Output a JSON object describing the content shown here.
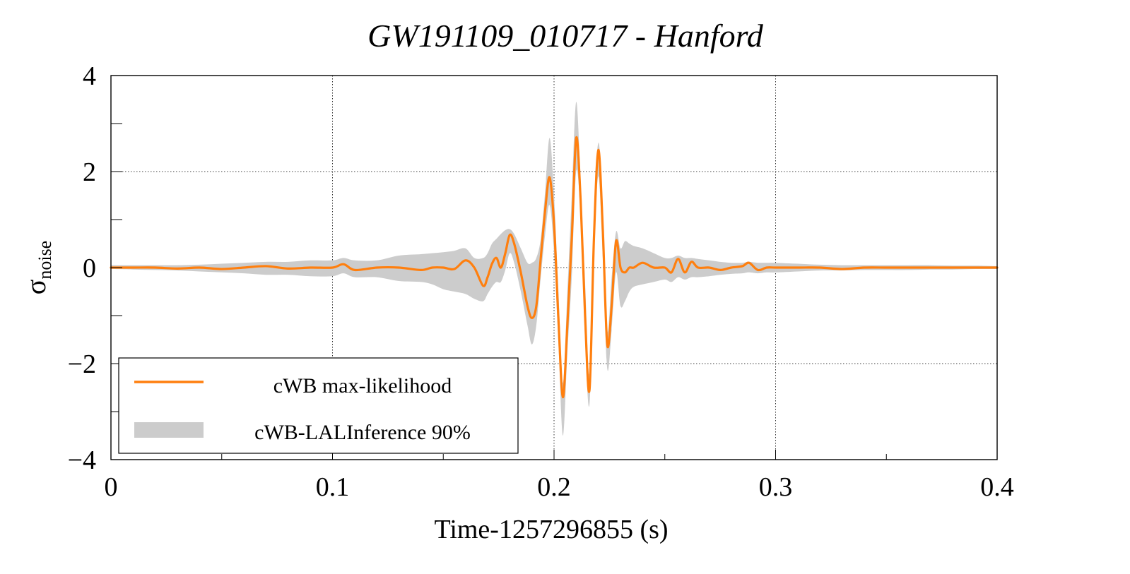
{
  "chart_data": {
    "type": "line",
    "title": "GW191109_010717 - Hanford",
    "xlabel": "Time-1257296855 (s)",
    "ylabel": {
      "main": "σ",
      "sub": "noise"
    },
    "xlim": [
      0,
      0.4
    ],
    "ylim": [
      -4,
      4
    ],
    "xticks": [
      {
        "value": 0,
        "label": "0"
      },
      {
        "value": 0.1,
        "label": "0.1"
      },
      {
        "value": 0.2,
        "label": "0.2"
      },
      {
        "value": 0.3,
        "label": "0.3"
      },
      {
        "value": 0.4,
        "label": "0.4"
      }
    ],
    "yticks": [
      {
        "value": 4,
        "label": "4"
      },
      {
        "value": 2,
        "label": "2"
      },
      {
        "value": 0,
        "label": "0"
      },
      {
        "value": -2,
        "label": "−2"
      },
      {
        "value": -4,
        "label": "−4"
      }
    ],
    "grid": true,
    "legend": {
      "position": "bottom-left",
      "entries": [
        {
          "label": "cWB max-likelihood",
          "kind": "line",
          "color": "#ff7f0e"
        },
        {
          "label": "cWB-LALInference 90%",
          "kind": "band",
          "color": "#cccccc"
        }
      ]
    },
    "x": [
      0.0,
      0.01,
      0.02,
      0.03,
      0.04,
      0.05,
      0.06,
      0.07,
      0.08,
      0.09,
      0.1,
      0.105,
      0.11,
      0.12,
      0.13,
      0.14,
      0.145,
      0.15,
      0.155,
      0.16,
      0.164,
      0.168,
      0.17,
      0.172,
      0.174,
      0.176,
      0.178,
      0.18,
      0.182,
      0.185,
      0.188,
      0.19,
      0.192,
      0.194,
      0.196,
      0.198,
      0.2,
      0.202,
      0.204,
      0.206,
      0.208,
      0.21,
      0.212,
      0.214,
      0.216,
      0.218,
      0.22,
      0.222,
      0.224,
      0.226,
      0.228,
      0.23,
      0.232,
      0.234,
      0.236,
      0.24,
      0.245,
      0.25,
      0.253,
      0.256,
      0.259,
      0.262,
      0.265,
      0.27,
      0.275,
      0.28,
      0.285,
      0.288,
      0.292,
      0.296,
      0.3,
      0.31,
      0.32,
      0.33,
      0.34,
      0.35,
      0.36,
      0.37,
      0.38,
      0.39,
      0.4
    ],
    "series": [
      {
        "name": "cWB max-likelihood",
        "color": "#ff7f0e",
        "values": [
          0.0,
          0.0,
          0.0,
          -0.02,
          0.0,
          -0.03,
          0.0,
          0.03,
          -0.02,
          0.0,
          0.0,
          0.07,
          -0.05,
          0.0,
          0.0,
          -0.05,
          0.0,
          0.0,
          -0.03,
          0.15,
          0.0,
          -0.38,
          -0.2,
          0.08,
          0.2,
          0.0,
          0.3,
          0.68,
          0.5,
          -0.1,
          -0.8,
          -1.05,
          -0.8,
          0.2,
          1.2,
          1.88,
          0.9,
          -1.1,
          -2.7,
          -1.2,
          0.6,
          2.7,
          1.4,
          -1.0,
          -2.55,
          0.6,
          2.45,
          0.8,
          -1.6,
          -0.8,
          0.55,
          0.0,
          -0.1,
          0.0,
          0.0,
          0.1,
          0.0,
          0.0,
          -0.1,
          0.18,
          -0.1,
          0.12,
          0.0,
          0.0,
          -0.05,
          0.0,
          0.03,
          0.1,
          -0.05,
          0.0,
          0.0,
          0.0,
          0.0,
          -0.03,
          0.0,
          0.0,
          0.0,
          0.0,
          0.0,
          0.0,
          0.0
        ]
      }
    ],
    "band": {
      "name": "cWB-LALInference 90%",
      "color": "#cccccc",
      "upper": [
        0.05,
        0.05,
        0.05,
        0.05,
        0.06,
        0.08,
        0.1,
        0.12,
        0.12,
        0.15,
        0.15,
        0.2,
        0.15,
        0.15,
        0.25,
        0.28,
        0.3,
        0.32,
        0.35,
        0.4,
        0.2,
        0.2,
        0.3,
        0.5,
        0.6,
        0.7,
        0.78,
        0.8,
        0.7,
        0.4,
        0.1,
        0.1,
        0.2,
        0.6,
        1.6,
        2.7,
        1.5,
        -0.5,
        -2.4,
        -0.5,
        1.5,
        3.45,
        1.8,
        -0.3,
        -2.2,
        1.0,
        2.6,
        1.3,
        -1.3,
        -0.2,
        0.75,
        0.4,
        0.55,
        0.5,
        0.45,
        0.4,
        0.3,
        0.2,
        0.2,
        0.25,
        0.2,
        0.2,
        0.18,
        0.15,
        0.12,
        0.1,
        0.1,
        0.12,
        0.1,
        0.1,
        0.1,
        0.08,
        0.06,
        0.05,
        0.05,
        0.05,
        0.05,
        0.05,
        0.04,
        0.04,
        0.03
      ],
      "lower": [
        -0.03,
        -0.04,
        -0.05,
        -0.06,
        -0.08,
        -0.1,
        -0.12,
        -0.15,
        -0.15,
        -0.18,
        -0.18,
        -0.12,
        -0.2,
        -0.2,
        -0.28,
        -0.3,
        -0.35,
        -0.45,
        -0.5,
        -0.55,
        -0.65,
        -0.7,
        -0.55,
        -0.4,
        -0.3,
        -0.3,
        -0.05,
        0.3,
        0.1,
        -0.5,
        -1.2,
        -1.6,
        -1.2,
        -0.2,
        0.7,
        1.3,
        0.3,
        -1.6,
        -3.5,
        -1.8,
        -0.2,
        2.0,
        1.0,
        -1.5,
        -2.85,
        0.2,
        1.9,
        0.2,
        -2.1,
        -1.3,
        -0.1,
        -0.8,
        -0.7,
        -0.5,
        -0.4,
        -0.35,
        -0.3,
        -0.25,
        -0.3,
        -0.2,
        -0.25,
        -0.2,
        -0.2,
        -0.18,
        -0.15,
        -0.13,
        -0.12,
        -0.1,
        -0.12,
        -0.1,
        -0.1,
        -0.08,
        -0.06,
        -0.06,
        -0.05,
        -0.05,
        -0.05,
        -0.04,
        -0.04,
        -0.03,
        -0.03
      ]
    }
  }
}
